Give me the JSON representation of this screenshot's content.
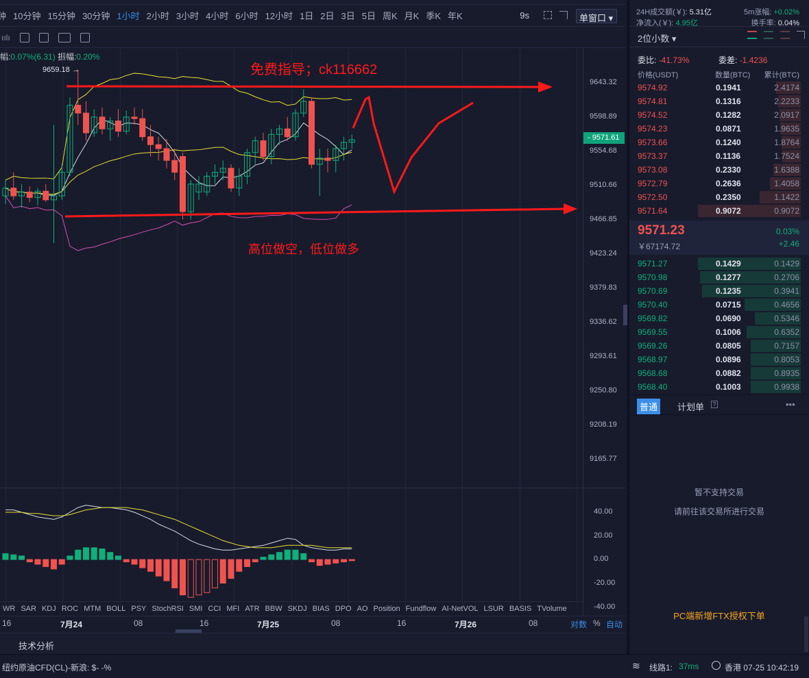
{
  "toolbar": {
    "periods": [
      "钟",
      "10分钟",
      "15分钟",
      "30分钟",
      "1小时",
      "2小时",
      "3小时",
      "4小时",
      "6小时",
      "12小时",
      "1日",
      "2日",
      "3日",
      "5日",
      "周K",
      "月K",
      "季K",
      "年K"
    ],
    "active": "1小时",
    "refresh": "9s",
    "window_mode": "单窗口"
  },
  "info": {
    "change_label": "幅:",
    "change_value": "0.07%(6.31)",
    "amp_label": "振幅:",
    "amp_value": "0.20%"
  },
  "price_axis": [
    "9643.32",
    "9598.89",
    "9554.68",
    "9510.66",
    "9466.85",
    "9423.24",
    "9379.83",
    "9336.62",
    "9293.61",
    "9250.80",
    "9208.19",
    "9165.77"
  ],
  "current_price_tag": "9571.61",
  "high_marker": "9659.18 →",
  "sub_axis": [
    "40.00",
    "20.00",
    "0.00",
    "-20.00",
    "-40.00"
  ],
  "annotations": {
    "top": "免费指导；ck116662",
    "bottom": "高位做空，低位做多"
  },
  "indicators": [
    "WR",
    "SAR",
    "KDJ",
    "ROC",
    "MTM",
    "BOLL",
    "PSY",
    "StochRSI",
    "SMI",
    "CCI",
    "MFI",
    "ATR",
    "BBW",
    "SKDJ",
    "BIAS",
    "DPO",
    "AO",
    "Position",
    "Fundflow",
    "AI-NetVOL",
    "LSUR",
    "BASIS",
    "TVolume"
  ],
  "date_axis": [
    "16",
    "7月24",
    "08",
    "16",
    "7月25",
    "08",
    "16",
    "7月26",
    "08"
  ],
  "axis_modes": {
    "log": "对数",
    "pct": "%",
    "auto": "自动"
  },
  "bottom_tab": "技术分析",
  "status": {
    "ticker": "纽约原油CFD(CL)-新浪:  $- -%",
    "line_label": "线路1:",
    "latency": "37ms",
    "time": "香港 07-25 10:42:19"
  },
  "colors": {
    "up": "#0fb07c",
    "down": "#f0534f",
    "accent": "#3b8ee8",
    "annotation": "#ff1a1a"
  },
  "right": {
    "stats": {
      "vol_label": "24H成交额(￥):",
      "vol": "5.31亿",
      "chg5m_label": "5m涨幅:",
      "chg5m": "+0.02%",
      "inflow_label": "净流入(￥):",
      "inflow": "4.95亿",
      "turnover_label": "换手率:",
      "turnover": "0.04%"
    },
    "decimals": "2位小数",
    "ratio_label": "委比:",
    "ratio": "-41.73%",
    "diff_label": "委差:",
    "diff": "-1.4236",
    "headers": [
      "价格(USDT)",
      "数量(BTC)",
      "累计(BTC)"
    ],
    "asks": [
      [
        "9574.92",
        "0.1941",
        "2.4174",
        0.24
      ],
      [
        "9574.81",
        "0.1316",
        "2.2233",
        0.22
      ],
      [
        "9574.52",
        "0.1282",
        "2.0917",
        0.21
      ],
      [
        "9574.23",
        "0.0871",
        "1.9635",
        0.2
      ],
      [
        "9573.66",
        "0.1240",
        "1.8764",
        0.19
      ],
      [
        "9573.37",
        "0.1136",
        "1.7524",
        0.18
      ],
      [
        "9573.08",
        "0.2330",
        "1.6388",
        0.27
      ],
      [
        "9572.79",
        "0.2636",
        "1.4058",
        0.3
      ],
      [
        "9572.50",
        "0.2350",
        "1.1422",
        0.4
      ],
      [
        "9571.64",
        "0.9072",
        "0.9072",
        1.0
      ]
    ],
    "last_price": "9571.23",
    "last_cny": "￥67174.72",
    "last_pct": "0.03%",
    "last_chg": "+2.46",
    "bids": [
      [
        "9571.27",
        "0.1429",
        "0.1429",
        1.0
      ],
      [
        "9570.98",
        "0.1277",
        "0.2706",
        0.98
      ],
      [
        "9570.69",
        "0.1235",
        "0.3941",
        0.96
      ],
      [
        "9570.40",
        "0.0715",
        "0.4656",
        0.55
      ],
      [
        "9569.82",
        "0.0690",
        "0.5346",
        0.45
      ],
      [
        "9569.55",
        "0.1006",
        "0.6352",
        0.53
      ],
      [
        "9569.26",
        "0.0805",
        "0.7157",
        0.49
      ],
      [
        "9568.97",
        "0.0896",
        "0.8053",
        0.49
      ],
      [
        "9568.68",
        "0.0882",
        "0.8935",
        0.49
      ],
      [
        "9568.40",
        "0.1003",
        "0.9938",
        0.49
      ]
    ],
    "tabs": [
      "普通",
      "计划单"
    ],
    "msg1": "暂不支持交易",
    "msg2": "请前往该交易所进行交易",
    "ftx": "PC端新增FTX授权下单"
  },
  "chart_data": {
    "type": "candlestick",
    "ohlc": [
      [
        9500,
        9520,
        9490,
        9510
      ],
      [
        9510,
        9530,
        9495,
        9500
      ],
      [
        9500,
        9515,
        9485,
        9505
      ],
      [
        9505,
        9512,
        9492,
        9498
      ],
      [
        9498,
        9510,
        9488,
        9506
      ],
      [
        9506,
        9515,
        9492,
        9495
      ],
      [
        9495,
        9590,
        9440,
        9500
      ],
      [
        9500,
        9540,
        9495,
        9530
      ],
      [
        9530,
        9625,
        9525,
        9615
      ],
      [
        9615,
        9660,
        9590,
        9605
      ],
      [
        9605,
        9620,
        9570,
        9580
      ],
      [
        9580,
        9610,
        9575,
        9600
      ],
      [
        9600,
        9612,
        9578,
        9585
      ],
      [
        9585,
        9600,
        9570,
        9595
      ],
      [
        9595,
        9610,
        9575,
        9582
      ],
      [
        9582,
        9608,
        9578,
        9600
      ],
      [
        9600,
        9612,
        9590,
        9598
      ],
      [
        9598,
        9610,
        9570,
        9575
      ],
      [
        9575,
        9590,
        9550,
        9565
      ],
      [
        9565,
        9575,
        9545,
        9560
      ],
      [
        9560,
        9572,
        9535,
        9545
      ],
      [
        9545,
        9560,
        9520,
        9530
      ],
      [
        9550,
        9555,
        9470,
        9480
      ],
      [
        9480,
        9520,
        9470,
        9515
      ],
      [
        9505,
        9525,
        9495,
        9515
      ],
      [
        9505,
        9530,
        9500,
        9525
      ],
      [
        9525,
        9540,
        9515,
        9530
      ],
      [
        9530,
        9545,
        9520,
        9535
      ],
      [
        9535,
        9540,
        9505,
        9510
      ],
      [
        9510,
        9535,
        9500,
        9525
      ],
      [
        9525,
        9560,
        9515,
        9555
      ],
      [
        9555,
        9575,
        9540,
        9570
      ],
      [
        9570,
        9580,
        9545,
        9550
      ],
      [
        9550,
        9585,
        9540,
        9578
      ],
      [
        9578,
        9590,
        9565,
        9585
      ],
      [
        9585,
        9600,
        9570,
        9575
      ],
      [
        9575,
        9610,
        9570,
        9605
      ],
      [
        9605,
        9635,
        9600,
        9620
      ],
      [
        9620,
        9625,
        9535,
        9540
      ],
      [
        9540,
        9560,
        9500,
        9548
      ],
      [
        9548,
        9560,
        9530,
        9545
      ],
      [
        9545,
        9565,
        9530,
        9560
      ],
      [
        9560,
        9575,
        9545,
        9568
      ],
      [
        9568,
        9578,
        9560,
        9571.23
      ]
    ],
    "ylim": [
      9165.77,
      9643.32
    ],
    "sub": {
      "hist": [
        5,
        4,
        3,
        -2,
        -4,
        -6,
        -8,
        -4,
        3,
        8,
        10,
        10,
        9,
        6,
        3,
        -2,
        -4,
        -7,
        -10,
        -14,
        -18,
        -24,
        -30,
        -32,
        -30,
        -28,
        -24,
        -20,
        -16,
        -10,
        -6,
        -2,
        2,
        4,
        6,
        8,
        8,
        5,
        -2,
        -5,
        -4,
        -3,
        -2,
        -1
      ],
      "dif": [
        42,
        42,
        40,
        38,
        36,
        35,
        34,
        36,
        40,
        44,
        46,
        45,
        44,
        44,
        43,
        42,
        40,
        37,
        34,
        30,
        27,
        24,
        20,
        16,
        13,
        11,
        9,
        8,
        8,
        9,
        10,
        11,
        12,
        14,
        16,
        18,
        17,
        12,
        10,
        9,
        8,
        8,
        9,
        9
      ],
      "dea": [
        40,
        40,
        40,
        39,
        39,
        38,
        37,
        37,
        38,
        40,
        42,
        43,
        44,
        44,
        44,
        44,
        43,
        42,
        40,
        38,
        36,
        34,
        31,
        28,
        25,
        22,
        19,
        16,
        14,
        12,
        11,
        10,
        10,
        10,
        11,
        12,
        12,
        12,
        12,
        11,
        10,
        10,
        10,
        10
      ],
      "ylim": [
        -40,
        40
      ]
    }
  }
}
